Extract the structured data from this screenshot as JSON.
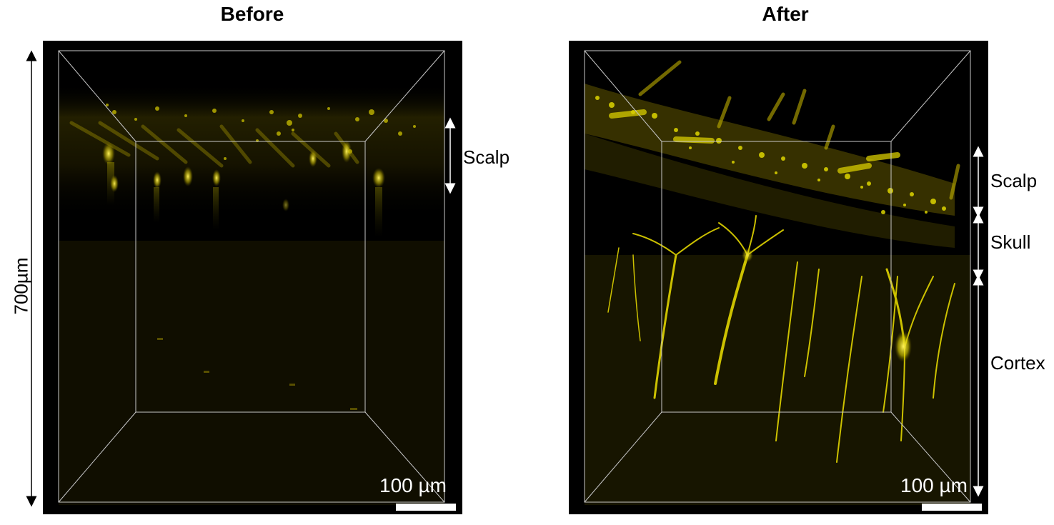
{
  "panels": {
    "left": {
      "title": "Before",
      "scale_text": "100 µm"
    },
    "right": {
      "title": "After",
      "scale_text": "100 µm"
    }
  },
  "depth_label": "700µm",
  "regions": {
    "scalp_left": "Scalp",
    "scalp_right": "Scalp",
    "skull": "Skull",
    "cortex": "Cortex"
  },
  "colors": {
    "background": "#000000",
    "signal": "#e8e000",
    "box_lines": "#c8c8c8"
  }
}
